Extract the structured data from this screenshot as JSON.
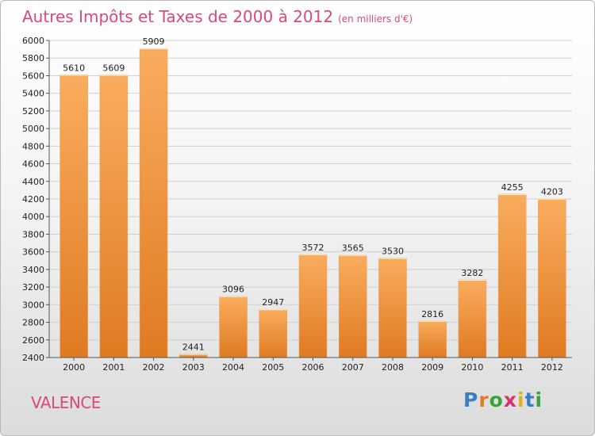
{
  "title": "Autres Impôts et Taxes de 2000 à 2012",
  "subtitle": "(en milliers d'€)",
  "city": "VALENCE",
  "logo": {
    "text": "Proxiti",
    "letters": [
      "P",
      "r",
      "o",
      "x",
      "i",
      "t",
      "i"
    ],
    "colors": [
      "#3a7fc4",
      "#e07b22",
      "#3aa23a",
      "#d6336c",
      "#e0b020",
      "#3a7fc4",
      "#3aa23a"
    ]
  },
  "colors": {
    "title": "#d84a7a",
    "bar": "#f08f35",
    "bar_light": "#f6aa5a",
    "bar_dark": "#d77520"
  },
  "chart_data": {
    "type": "bar",
    "categories": [
      "2000",
      "2001",
      "2002",
      "2003",
      "2004",
      "2005",
      "2006",
      "2007",
      "2008",
      "2009",
      "2010",
      "2011",
      "2012"
    ],
    "values": [
      5610,
      5609,
      5909,
      2441,
      3096,
      2947,
      3572,
      3565,
      3530,
      2816,
      3282,
      4255,
      4203
    ],
    "ylim": [
      2400,
      6000
    ],
    "yticks": [
      2400,
      2600,
      2800,
      3000,
      3200,
      3400,
      3600,
      3800,
      4000,
      4200,
      4400,
      4600,
      4800,
      5000,
      5200,
      5400,
      5600,
      5800,
      6000
    ],
    "grid": true,
    "data_labels": true
  }
}
